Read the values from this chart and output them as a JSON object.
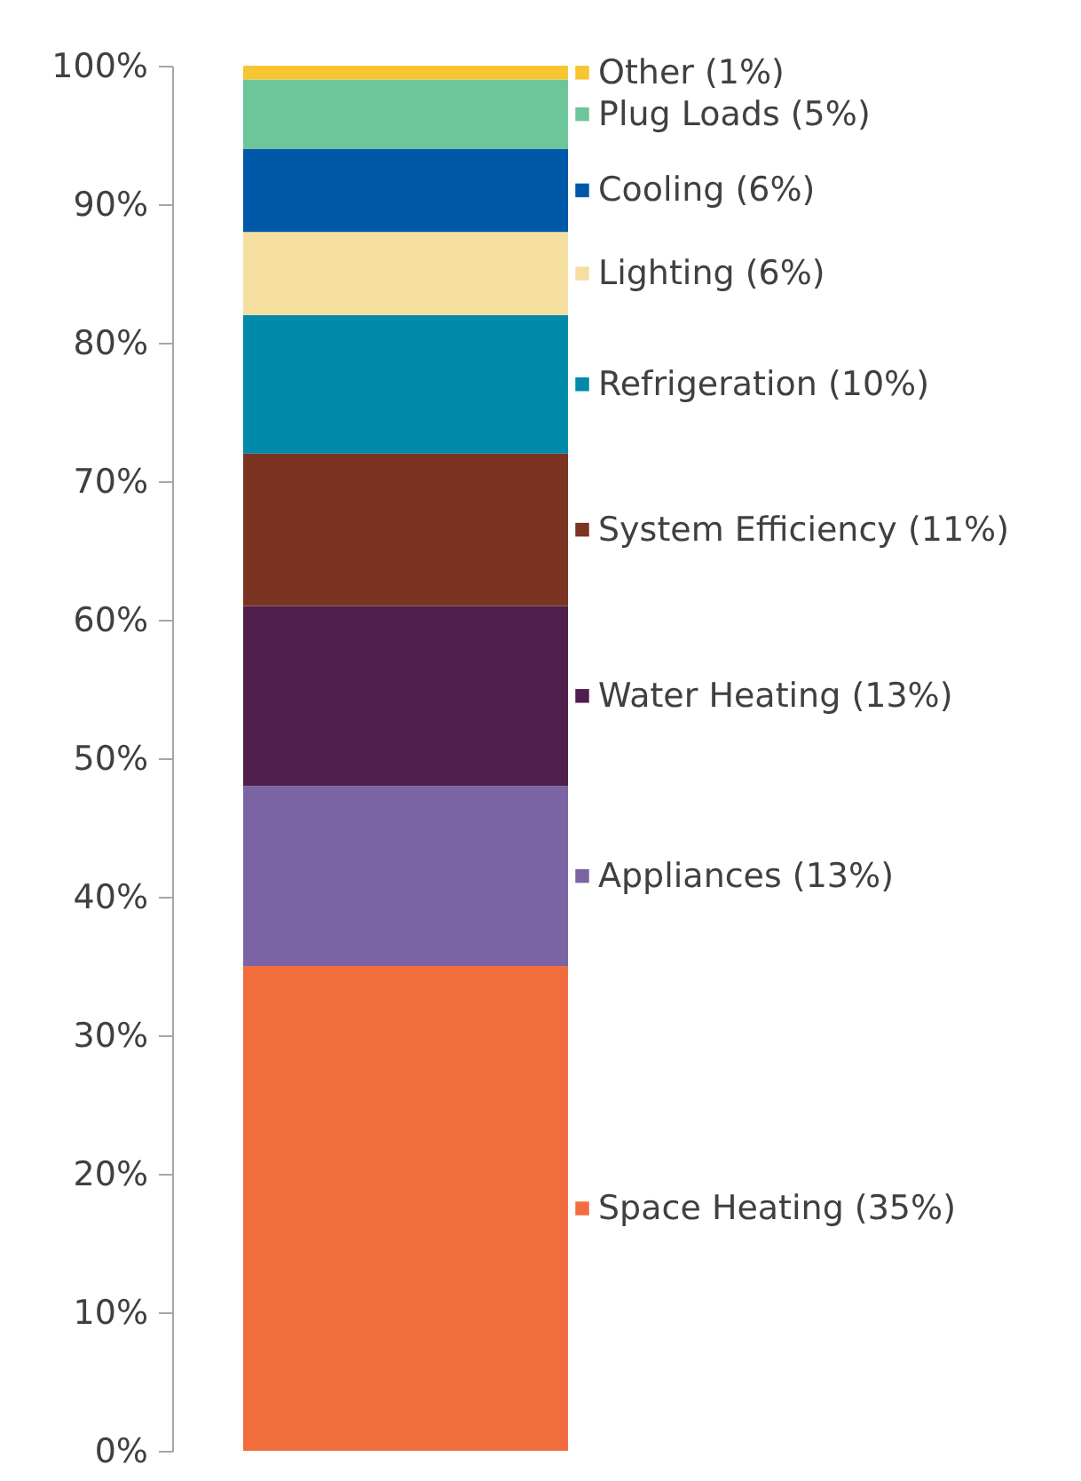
{
  "chart_data": {
    "type": "bar",
    "stacked": true,
    "legend": "right",
    "categories": [
      null
    ],
    "tick_labels": "y",
    "ylim": [
      0,
      100
    ],
    "yticks": [
      {
        "value": 0,
        "label": "0%"
      },
      {
        "value": 10,
        "label": "10%"
      },
      {
        "value": 20,
        "label": "20%"
      },
      {
        "value": 30,
        "label": "30%"
      },
      {
        "value": 40,
        "label": "40%"
      },
      {
        "value": 50,
        "label": "50%"
      },
      {
        "value": 60,
        "label": "60%"
      },
      {
        "value": 70,
        "label": "70%"
      },
      {
        "value": 80,
        "label": "80%"
      },
      {
        "value": 90,
        "label": "90%"
      },
      {
        "value": 100,
        "label": "100%"
      }
    ],
    "series": [
      {
        "name": "Space Heating (35%)",
        "color": "#f26d3d",
        "values": [
          35
        ]
      },
      {
        "name": "Appliances (13%)",
        "color": "#7b64a3",
        "values": [
          13
        ]
      },
      {
        "name": "Water Heating (13%)",
        "color": "#4f1f4d",
        "values": [
          13
        ]
      },
      {
        "name": "System Efficiency (11%)",
        "color": "#7b3421",
        "values": [
          11
        ]
      },
      {
        "name": "Refrigeration (10%)",
        "color": "#0089a8",
        "values": [
          10
        ]
      },
      {
        "name": "Lighting (6%)",
        "color": "#f5dfa0",
        "values": [
          6
        ]
      },
      {
        "name": "Cooling (6%)",
        "color": "#0058a8",
        "values": [
          6
        ]
      },
      {
        "name": "Plug Loads (5%)",
        "color": "#6cc69a",
        "values": [
          5
        ]
      },
      {
        "name": "Other (1%)",
        "color": "#f7c531",
        "values": [
          1
        ]
      }
    ]
  }
}
